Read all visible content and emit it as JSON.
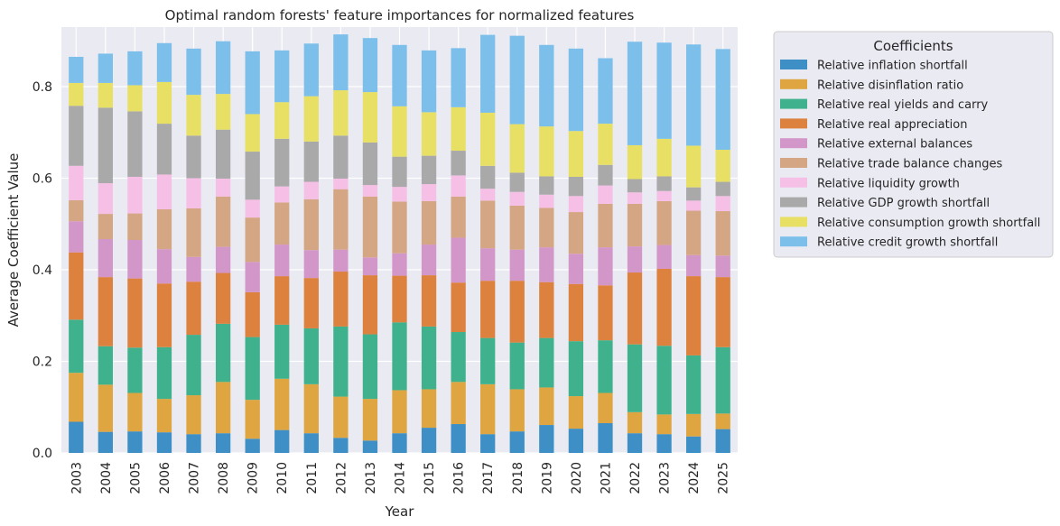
{
  "chart_data": {
    "type": "bar",
    "stacked": true,
    "title": "Optimal random forests' feature importances for normalized features",
    "xlabel": "Year",
    "ylabel": "Average Coefficient Value",
    "ylim": [
      0,
      0.93
    ],
    "yticks": [
      "0.0",
      "0.2",
      "0.4",
      "0.6",
      "0.8"
    ],
    "grid": true,
    "legend": {
      "title": "Coefficients",
      "placement": "outside-right"
    },
    "categories": [
      "2003",
      "2004",
      "2005",
      "2006",
      "2007",
      "2008",
      "2009",
      "2010",
      "2011",
      "2012",
      "2013",
      "2014",
      "2015",
      "2016",
      "2017",
      "2018",
      "2019",
      "2020",
      "2021",
      "2022",
      "2023",
      "2024",
      "2025"
    ],
    "series": [
      {
        "name": "Relative inflation shortfall",
        "color": "#3d8fc6",
        "values": [
          0.068,
          0.046,
          0.047,
          0.045,
          0.041,
          0.043,
          0.031,
          0.05,
          0.043,
          0.033,
          0.027,
          0.043,
          0.055,
          0.063,
          0.041,
          0.047,
          0.061,
          0.053,
          0.065,
          0.043,
          0.041,
          0.036,
          0.052
        ]
      },
      {
        "name": "Relative disinflation ratio",
        "color": "#dea540",
        "values": [
          0.107,
          0.103,
          0.084,
          0.073,
          0.085,
          0.112,
          0.085,
          0.112,
          0.107,
          0.09,
          0.091,
          0.094,
          0.084,
          0.092,
          0.109,
          0.092,
          0.082,
          0.071,
          0.066,
          0.046,
          0.043,
          0.049,
          0.034
        ]
      },
      {
        "name": "Relative real yields and carry",
        "color": "#3fb28d",
        "values": [
          0.116,
          0.084,
          0.099,
          0.113,
          0.132,
          0.127,
          0.137,
          0.118,
          0.122,
          0.153,
          0.141,
          0.148,
          0.137,
          0.109,
          0.101,
          0.102,
          0.108,
          0.12,
          0.115,
          0.148,
          0.15,
          0.128,
          0.145
        ]
      },
      {
        "name": "Relative real appreciation",
        "color": "#dd813e",
        "values": [
          0.147,
          0.151,
          0.151,
          0.139,
          0.116,
          0.111,
          0.098,
          0.106,
          0.11,
          0.12,
          0.129,
          0.102,
          0.112,
          0.108,
          0.125,
          0.135,
          0.122,
          0.125,
          0.12,
          0.157,
          0.168,
          0.173,
          0.153
        ]
      },
      {
        "name": "Relative external balances",
        "color": "#d396c8",
        "values": [
          0.068,
          0.083,
          0.084,
          0.075,
          0.054,
          0.057,
          0.066,
          0.069,
          0.061,
          0.048,
          0.039,
          0.049,
          0.067,
          0.098,
          0.071,
          0.068,
          0.076,
          0.066,
          0.083,
          0.057,
          0.052,
          0.046,
          0.047
        ]
      },
      {
        "name": "Relative trade balance changes",
        "color": "#d4a683",
        "values": [
          0.046,
          0.055,
          0.058,
          0.087,
          0.106,
          0.11,
          0.097,
          0.092,
          0.111,
          0.132,
          0.133,
          0.113,
          0.095,
          0.09,
          0.104,
          0.096,
          0.086,
          0.091,
          0.095,
          0.093,
          0.096,
          0.097,
          0.097
        ]
      },
      {
        "name": "Relative liquidity growth",
        "color": "#f6bfe6",
        "values": [
          0.075,
          0.067,
          0.08,
          0.076,
          0.066,
          0.039,
          0.039,
          0.035,
          0.038,
          0.023,
          0.025,
          0.032,
          0.037,
          0.046,
          0.026,
          0.03,
          0.029,
          0.035,
          0.04,
          0.025,
          0.022,
          0.022,
          0.033
        ]
      },
      {
        "name": "Relative GDP growth shortfall",
        "color": "#a9a9a9",
        "values": [
          0.131,
          0.165,
          0.143,
          0.111,
          0.093,
          0.107,
          0.105,
          0.104,
          0.088,
          0.094,
          0.093,
          0.066,
          0.062,
          0.054,
          0.05,
          0.042,
          0.04,
          0.042,
          0.045,
          0.029,
          0.032,
          0.029,
          0.031
        ]
      },
      {
        "name": "Relative consumption growth shortfall",
        "color": "#e7e065",
        "values": [
          0.05,
          0.054,
          0.057,
          0.091,
          0.089,
          0.078,
          0.082,
          0.08,
          0.099,
          0.099,
          0.11,
          0.11,
          0.095,
          0.095,
          0.116,
          0.106,
          0.109,
          0.1,
          0.09,
          0.074,
          0.082,
          0.091,
          0.07
        ]
      },
      {
        "name": "Relative credit growth shortfall",
        "color": "#7bbfea",
        "values": [
          0.057,
          0.064,
          0.074,
          0.085,
          0.101,
          0.115,
          0.137,
          0.113,
          0.115,
          0.122,
          0.118,
          0.134,
          0.135,
          0.129,
          0.17,
          0.193,
          0.178,
          0.18,
          0.143,
          0.226,
          0.21,
          0.221,
          0.22
        ]
      }
    ]
  }
}
